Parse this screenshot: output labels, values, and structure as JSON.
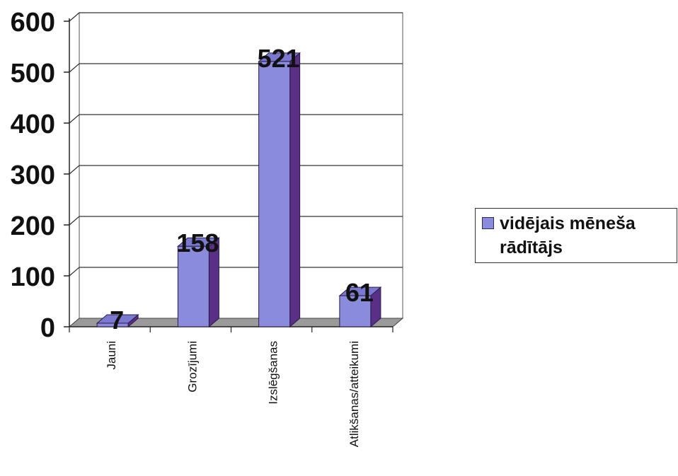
{
  "chart_data": {
    "type": "bar",
    "categories": [
      "Jauni",
      "Grozījumi",
      "Izslēgšanas",
      "Atlikšanas/atteikumi"
    ],
    "series": [
      {
        "name": "vidējais mēneša rādītājs",
        "values": [
          7,
          158,
          521,
          61
        ],
        "color": "#8b8bdc"
      }
    ],
    "data_labels": [
      "7",
      "158",
      "521",
      "61"
    ],
    "y_ticks": [
      "0",
      "100",
      "200",
      "300",
      "400",
      "500",
      "600"
    ],
    "ylim": [
      0,
      600
    ],
    "grid": true,
    "style": "3d",
    "legend_position": "right"
  }
}
